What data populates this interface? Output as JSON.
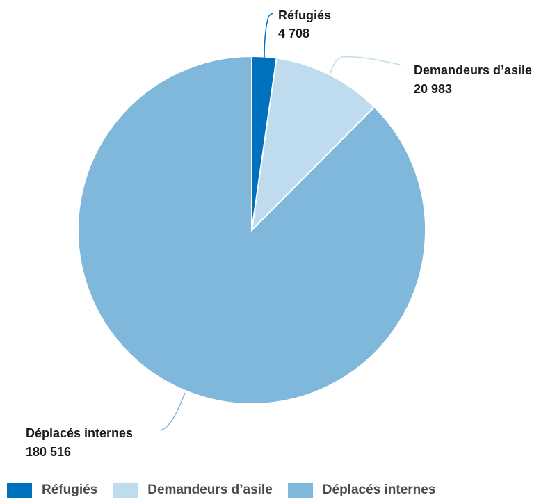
{
  "chart_data": {
    "type": "pie",
    "title": "",
    "categories": [
      "Réfugiés",
      "Demandeurs d’asile",
      "Déplacés internes"
    ],
    "values": [
      4708,
      20983,
      180516
    ],
    "value_labels": [
      "4 708",
      "20 983",
      "180 516"
    ],
    "colors": [
      "#0071bc",
      "#bfdcef",
      "#80b8dc"
    ],
    "legend_position": "bottom-left",
    "start_angle": "top, clockwise"
  },
  "legend": {
    "items": [
      {
        "label": "Réfugiés",
        "color": "#0071bc"
      },
      {
        "label": "Demandeurs d’asile",
        "color": "#bfdcef"
      },
      {
        "label": "Déplacés internes",
        "color": "#80b8dc"
      }
    ]
  }
}
